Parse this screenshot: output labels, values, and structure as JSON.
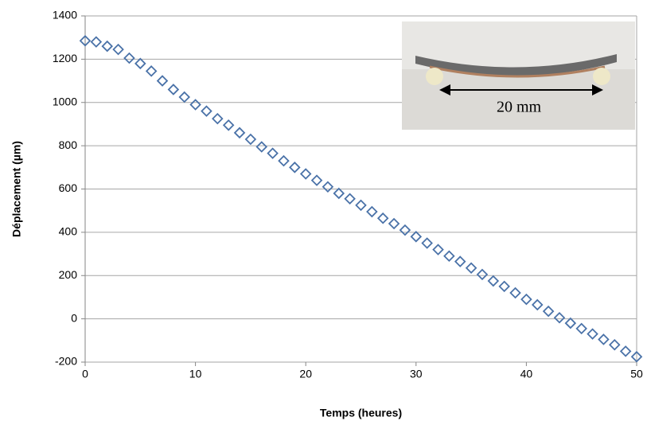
{
  "chart_data": {
    "type": "scatter",
    "xlabel": "Temps (heures)",
    "ylabel": "Déplacement (µm)",
    "annotation": "20 mm",
    "x": [
      0,
      1,
      2,
      3,
      4,
      5,
      6,
      7,
      8,
      9,
      10,
      11,
      12,
      13,
      14,
      15,
      16,
      17,
      18,
      19,
      20,
      21,
      22,
      23,
      24,
      25,
      26,
      27,
      28,
      29,
      30,
      31,
      32,
      33,
      34,
      35,
      36,
      37,
      38,
      39,
      40,
      41,
      42,
      43,
      44,
      45,
      46,
      47,
      48,
      49,
      50
    ],
    "values": [
      1285,
      1280,
      1260,
      1245,
      1205,
      1180,
      1145,
      1100,
      1060,
      1025,
      990,
      960,
      925,
      895,
      860,
      830,
      795,
      765,
      730,
      700,
      670,
      640,
      610,
      580,
      555,
      525,
      495,
      465,
      440,
      410,
      380,
      350,
      320,
      290,
      265,
      235,
      205,
      175,
      150,
      120,
      90,
      65,
      35,
      5,
      -20,
      -45,
      -70,
      -95,
      -120,
      -150,
      -175
    ],
    "color": "#4a72a8",
    "xlim": [
      0,
      50
    ],
    "xticks": [
      0,
      10,
      20,
      30,
      40,
      50
    ],
    "ylim": [
      -200,
      1400
    ],
    "yticks": [
      -200,
      0,
      200,
      400,
      600,
      800,
      1000,
      1200,
      1400
    ],
    "grid": true
  }
}
